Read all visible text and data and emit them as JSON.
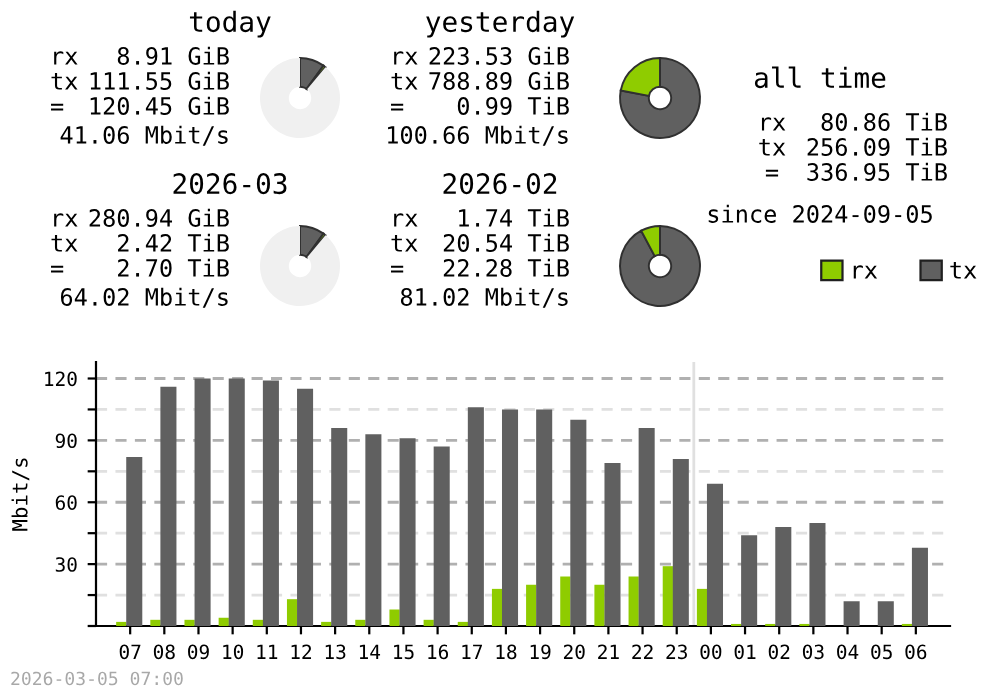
{
  "chart_data": [
    {
      "type": "donut",
      "title": "today",
      "categories": [
        null,
        null,
        null
      ],
      "values": [
        10,
        1,
        89
      ],
      "colors": [
        "#606060",
        "#8fcc00",
        "#f0f0f0"
      ],
      "annotations": [
        "rx",
        "8.91 GiB",
        "tx",
        "111.55 GiB",
        "=",
        "120.45 GiB",
        "41.06 Mbit/s"
      ]
    },
    {
      "type": "donut",
      "title": "yesterday",
      "categories": [
        null,
        null
      ],
      "values": [
        78,
        22
      ],
      "colors": [
        "#606060",
        "#8fcc00"
      ],
      "annotations": [
        "rx",
        "223.53 GiB",
        "tx",
        "788.89 GiB",
        "=",
        "0.99 TiB",
        "100.66 Mbit/s"
      ]
    },
    {
      "type": "other",
      "title": "all time",
      "annotations": [
        "rx",
        "80.86 TiB",
        "tx",
        "256.09 TiB",
        "=",
        "336.95 TiB",
        "since 2024-09-05"
      ]
    },
    {
      "type": "donut",
      "title": "2026-03",
      "categories": [
        null,
        null,
        null
      ],
      "values": [
        10,
        1,
        89
      ],
      "colors": [
        "#606060",
        "#8fcc00",
        "#f0f0f0"
      ],
      "annotations": [
        "rx",
        "280.94 GiB",
        "tx",
        "2.42 TiB",
        "=",
        "2.70 TiB",
        "64.02 Mbit/s"
      ]
    },
    {
      "type": "donut",
      "title": "2026-02",
      "categories": [
        null,
        null
      ],
      "values": [
        92.2,
        7.8
      ],
      "colors": [
        "#606060",
        "#8fcc00"
      ],
      "annotations": [
        "rx",
        "1.74 TiB",
        "tx",
        "20.54 TiB",
        "=",
        "22.28 TiB",
        "81.02 Mbit/s"
      ]
    },
    {
      "type": "bar",
      "ylabel": "Mbit/s",
      "categories": [
        "07",
        "08",
        "09",
        "10",
        "11",
        "12",
        "13",
        "14",
        "15",
        "16",
        "17",
        "18",
        "19",
        "20",
        "21",
        "22",
        "23",
        "00",
        "01",
        "02",
        "03",
        "04",
        "05",
        "06"
      ],
      "series": [
        {
          "name": "rx",
          "color": "#8fcc00",
          "values": [
            2,
            3,
            3,
            4,
            3,
            13,
            2,
            3,
            8,
            3,
            2,
            18,
            20,
            24,
            20,
            24,
            29,
            18,
            1,
            1,
            1,
            0,
            0,
            1
          ]
        },
        {
          "name": "tx",
          "color": "#606060",
          "values": [
            82,
            116,
            120,
            120,
            119,
            115,
            96,
            93,
            91,
            87,
            106,
            105,
            105,
            100,
            79,
            96,
            81,
            69,
            44,
            48,
            50,
            12,
            12,
            38
          ]
        }
      ],
      "ylim": [
        0,
        128
      ],
      "yticks": [
        {
          "value": 0,
          "label": null
        },
        {
          "value": 15,
          "label": null
        },
        30,
        {
          "value": 45,
          "label": null
        },
        60,
        {
          "value": 75,
          "label": null
        },
        90,
        {
          "value": 105,
          "label": null
        },
        120
      ],
      "grid": "y",
      "legend": "top right",
      "ref_lines": [
        {
          "axis": "x",
          "value": "00",
          "color": "#e0e0e0"
        }
      ],
      "annotations": [
        "2026-03-05 07:00"
      ]
    }
  ]
}
